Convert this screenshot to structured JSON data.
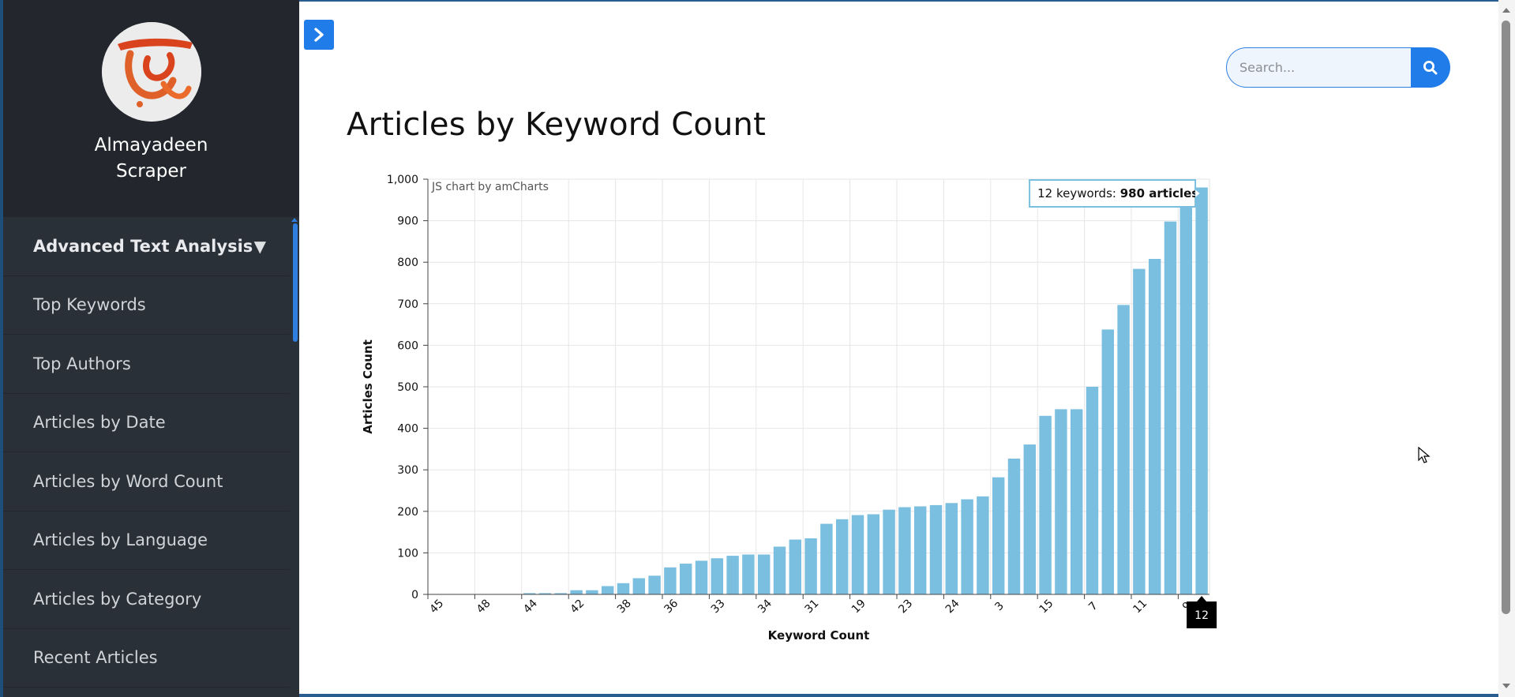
{
  "sidebar": {
    "brand": "Almayadeen Scraper",
    "brand_line1": "Almayadeen",
    "brand_line2": "Scraper",
    "dropdown": {
      "label": "Advanced Text Analysis",
      "icon": "caret-down-icon"
    },
    "items": [
      {
        "label": "Top Keywords"
      },
      {
        "label": "Top Authors"
      },
      {
        "label": "Articles by Date"
      },
      {
        "label": "Articles by Word Count"
      },
      {
        "label": "Articles by Language"
      },
      {
        "label": "Articles by Category"
      },
      {
        "label": "Recent Articles"
      }
    ]
  },
  "header": {
    "toggle_icon": "chevron-right-icon",
    "search": {
      "placeholder": "Search...",
      "value": "",
      "icon": "search-icon"
    }
  },
  "main": {
    "title": "Articles by Keyword Count"
  },
  "colors": {
    "accent": "#1f7ce8",
    "bar": "#7bbfe0",
    "sidebar_bg": "#2a3038",
    "sidebar_header_bg": "#23272d"
  },
  "chart_data": {
    "type": "bar",
    "xlabel": "Keyword Count",
    "ylabel": "Articles Count",
    "watermark": "JS chart by amCharts",
    "ylim": [
      0,
      1000
    ],
    "yticks": [
      0,
      100,
      200,
      300,
      400,
      500,
      600,
      700,
      800,
      900,
      1000
    ],
    "ytick_labels": [
      "0",
      "100",
      "200",
      "300",
      "400",
      "500",
      "600",
      "700",
      "800",
      "900",
      "1,000"
    ],
    "grid": true,
    "values": [
      1,
      1,
      1,
      1,
      1,
      1,
      3,
      3,
      3,
      10,
      10,
      20,
      27,
      39,
      45,
      65,
      74,
      81,
      87,
      93,
      96,
      96,
      115,
      132,
      135,
      170,
      181,
      191,
      193,
      204,
      210,
      212,
      215,
      220,
      229,
      236,
      282,
      327,
      361,
      430,
      446,
      446,
      500,
      638,
      697,
      784,
      808,
      898,
      937,
      980
    ],
    "x_tick_labels": [
      {
        "index": 0,
        "label": "45"
      },
      {
        "index": 3,
        "label": "48"
      },
      {
        "index": 6,
        "label": "44"
      },
      {
        "index": 9,
        "label": "42"
      },
      {
        "index": 12,
        "label": "38"
      },
      {
        "index": 15,
        "label": "36"
      },
      {
        "index": 18,
        "label": "33"
      },
      {
        "index": 21,
        "label": "34"
      },
      {
        "index": 24,
        "label": "31"
      },
      {
        "index": 27,
        "label": "19"
      },
      {
        "index": 30,
        "label": "23"
      },
      {
        "index": 33,
        "label": "24"
      },
      {
        "index": 36,
        "label": "3"
      },
      {
        "index": 39,
        "label": "15"
      },
      {
        "index": 42,
        "label": "7"
      },
      {
        "index": 45,
        "label": "11"
      },
      {
        "index": 48,
        "label": "9"
      }
    ],
    "tooltip": {
      "index": 49,
      "label": "12 keywords: ",
      "bold": "980 articles"
    },
    "cursor_label": {
      "index": 49,
      "label": "12"
    }
  }
}
